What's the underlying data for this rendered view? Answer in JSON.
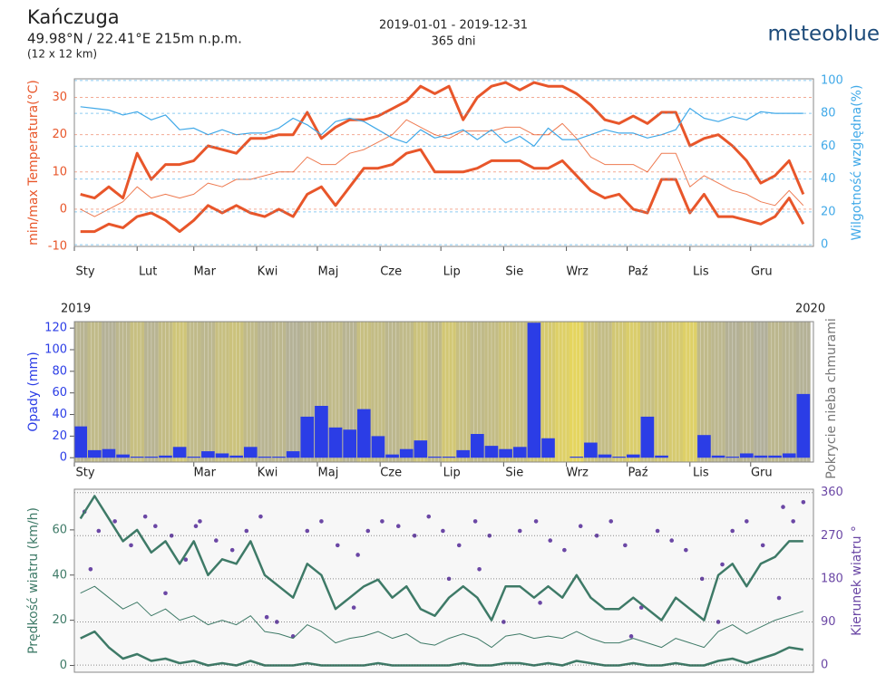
{
  "header": {
    "place": "Kańczuga",
    "coords": "49.98°N / 22.41°E   215m n.p.m.",
    "area": "(12 x 12 km)",
    "period": "2019-01-01 - 2019-12-31",
    "days": "365 dni",
    "brand": "meteoblue"
  },
  "chart_data": [
    {
      "type": "line",
      "ylabel": "min/max Temperatura(°C)",
      "y2label": "Wilgotność względna(%)",
      "x": [
        3,
        10,
        17,
        24,
        31,
        38,
        45,
        52,
        59,
        66,
        73,
        80,
        87,
        94,
        101,
        108,
        115,
        122,
        129,
        136,
        143,
        150,
        157,
        164,
        171,
        178,
        185,
        192,
        199,
        206,
        213,
        220,
        227,
        234,
        241,
        248,
        255,
        262,
        269,
        276,
        283,
        290,
        297,
        304,
        311,
        318,
        325,
        332,
        339,
        346,
        353,
        360
      ],
      "xlim": [
        0,
        365
      ],
      "xticks": [
        {
          "value": 0,
          "label": "Sty"
        },
        {
          "value": 31,
          "label": "Lut"
        },
        {
          "value": 59,
          "label": "Mar"
        },
        {
          "value": 90,
          "label": "Kwi"
        },
        {
          "value": 120,
          "label": "Maj"
        },
        {
          "value": 151,
          "label": "Cze"
        },
        {
          "value": 181,
          "label": "Lip"
        },
        {
          "value": 212,
          "label": "Sie"
        },
        {
          "value": 243,
          "label": "Wrz"
        },
        {
          "value": 273,
          "label": "Paź"
        },
        {
          "value": 304,
          "label": "Lis"
        },
        {
          "value": 334,
          "label": "Gru"
        }
      ],
      "ylim": [
        -10,
        35
      ],
      "yticks": [
        -10,
        0,
        10,
        20,
        30
      ],
      "y2lim": [
        -1,
        101
      ],
      "y2ticks": [
        0,
        20,
        40,
        60,
        80,
        100
      ],
      "series": [
        {
          "name": "max",
          "color": "#e8562a",
          "values": [
            4,
            3,
            6,
            3,
            15,
            8,
            12,
            12,
            13,
            17,
            16,
            15,
            19,
            19,
            20,
            20,
            26,
            19,
            22,
            24,
            24,
            25,
            27,
            29,
            33,
            31,
            33,
            24,
            30,
            33,
            34,
            32,
            34,
            33,
            33,
            31,
            28,
            24,
            23,
            25,
            23,
            26,
            26,
            17,
            19,
            20,
            17,
            13,
            7,
            9,
            13,
            4
          ]
        },
        {
          "name": "mean",
          "color": "#ee7a50",
          "values": [
            0,
            -2,
            0,
            2,
            6,
            3,
            4,
            3,
            4,
            7,
            6,
            8,
            8,
            9,
            10,
            10,
            14,
            12,
            12,
            15,
            16,
            18,
            20,
            24,
            22,
            20,
            19,
            21,
            21,
            21,
            22,
            22,
            20,
            20,
            23,
            19,
            14,
            12,
            12,
            12,
            10,
            15,
            15,
            6,
            9,
            7,
            5,
            4,
            2,
            1,
            5,
            1
          ]
        },
        {
          "name": "min",
          "color": "#e8562a",
          "values": [
            -6,
            -6,
            -4,
            -5,
            -2,
            -1,
            -3,
            -6,
            -3,
            1,
            -1,
            1,
            -1,
            -2,
            0,
            -2,
            4,
            6,
            1,
            6,
            11,
            11,
            12,
            15,
            16,
            10,
            10,
            10,
            11,
            13,
            13,
            13,
            11,
            11,
            13,
            9,
            5,
            3,
            4,
            0,
            -1,
            8,
            8,
            -1,
            4,
            -2,
            -2,
            -3,
            -4,
            -2,
            3,
            -4
          ]
        },
        {
          "name": "humidity",
          "color": "#41a9e8",
          "axis": "y2",
          "values": [
            84,
            83,
            82,
            79,
            81,
            76,
            79,
            70,
            71,
            67,
            70,
            67,
            68,
            68,
            71,
            77,
            73,
            67,
            75,
            77,
            75,
            70,
            65,
            62,
            70,
            65,
            67,
            70,
            64,
            70,
            62,
            66,
            60,
            71,
            64,
            64,
            67,
            70,
            68,
            68,
            65,
            67,
            70,
            83,
            77,
            75,
            78,
            76,
            81,
            80,
            80,
            80
          ]
        }
      ]
    },
    {
      "type": "bar",
      "ylabel": "Opady (mm)",
      "y2label": "Pokrycie nieba chmurami",
      "year_labels": [
        "2019",
        "2020"
      ],
      "x": [
        3,
        10,
        17,
        24,
        31,
        38,
        45,
        52,
        59,
        66,
        73,
        80,
        87,
        94,
        101,
        108,
        115,
        122,
        129,
        136,
        143,
        150,
        157,
        164,
        171,
        178,
        185,
        192,
        199,
        206,
        213,
        220,
        227,
        234,
        241,
        248,
        255,
        262,
        269,
        276,
        283,
        290,
        297,
        304,
        311,
        318,
        325,
        332,
        339,
        346,
        353,
        360
      ],
      "xlim": [
        0,
        365
      ],
      "xticks": [
        {
          "value": 0,
          "label": "Sty"
        },
        {
          "value": 59,
          "label": "Mar"
        },
        {
          "value": 90,
          "label": "Kwi"
        },
        {
          "value": 120,
          "label": "Maj"
        },
        {
          "value": 151,
          "label": "Cze"
        },
        {
          "value": 181,
          "label": "Lip"
        },
        {
          "value": 212,
          "label": "Sie"
        },
        {
          "value": 243,
          "label": "Wrz"
        },
        {
          "value": 273,
          "label": "Paź"
        },
        {
          "value": 304,
          "label": "Lis"
        },
        {
          "value": 334,
          "label": "Gru"
        }
      ],
      "ylim": [
        -4,
        126
      ],
      "yticks": [
        0,
        20,
        40,
        60,
        80,
        100,
        120
      ],
      "color": "#2b3de6",
      "cloud_colors": [
        "#f4e04d",
        "#a9a9a3"
      ],
      "values": [
        29,
        7,
        8,
        3,
        1,
        1,
        2,
        10,
        1,
        6,
        4,
        2,
        10,
        1,
        1,
        6,
        38,
        48,
        28,
        26,
        45,
        20,
        3,
        8,
        16,
        1,
        1,
        7,
        22,
        11,
        8,
        10,
        125,
        18,
        0,
        1,
        14,
        3,
        1,
        3,
        38,
        2,
        0,
        0,
        21,
        2,
        1,
        4,
        2,
        2,
        4,
        59
      ],
      "cloud_cover": [
        80,
        70,
        85,
        75,
        60,
        80,
        65,
        50,
        70,
        75,
        60,
        55,
        70,
        80,
        75,
        85,
        80,
        75,
        70,
        80,
        60,
        65,
        75,
        70,
        55,
        70,
        45,
        60,
        70,
        65,
        55,
        60,
        50,
        40,
        30,
        20,
        55,
        65,
        45,
        35,
        60,
        50,
        40,
        30,
        70,
        75,
        85,
        80,
        90,
        75,
        80,
        85
      ]
    },
    {
      "type": "line",
      "ylabel": "Prędkość wiatru (km/h)",
      "y2label": "Kierunek wiatru °",
      "x": [
        3,
        10,
        17,
        24,
        31,
        38,
        45,
        52,
        59,
        66,
        73,
        80,
        87,
        94,
        101,
        108,
        115,
        122,
        129,
        136,
        143,
        150,
        157,
        164,
        171,
        178,
        185,
        192,
        199,
        206,
        213,
        220,
        227,
        234,
        241,
        248,
        255,
        262,
        269,
        276,
        283,
        290,
        297,
        304,
        311,
        318,
        325,
        332,
        339,
        346,
        353,
        360
      ],
      "xlim": [
        0,
        365
      ],
      "ylim": [
        -3,
        78
      ],
      "yticks": [
        0,
        20,
        40,
        60
      ],
      "y2lim": [
        -15,
        367
      ],
      "y2ticks": [
        0,
        90,
        180,
        270,
        360
      ],
      "series": [
        {
          "name": "max",
          "color": "#3e7a67",
          "values": [
            65,
            75,
            65,
            55,
            60,
            50,
            55,
            45,
            55,
            40,
            47,
            45,
            55,
            40,
            35,
            30,
            45,
            40,
            25,
            30,
            35,
            38,
            30,
            35,
            25,
            22,
            30,
            35,
            30,
            20,
            35,
            35,
            30,
            35,
            30,
            40,
            30,
            25,
            25,
            30,
            25,
            20,
            30,
            25,
            20,
            40,
            45,
            35,
            45,
            48,
            55,
            55
          ]
        },
        {
          "name": "mean",
          "color": "#3e7a67",
          "values": [
            32,
            35,
            30,
            25,
            28,
            22,
            25,
            20,
            22,
            18,
            20,
            18,
            22,
            15,
            14,
            12,
            18,
            15,
            10,
            12,
            13,
            15,
            12,
            14,
            10,
            9,
            12,
            14,
            12,
            8,
            13,
            14,
            12,
            13,
            12,
            15,
            12,
            10,
            10,
            12,
            10,
            8,
            12,
            10,
            8,
            15,
            18,
            14,
            17,
            20,
            22,
            24
          ]
        },
        {
          "name": "min",
          "color": "#3e7a67",
          "values": [
            12,
            15,
            8,
            3,
            5,
            2,
            3,
            1,
            2,
            0,
            1,
            0,
            2,
            0,
            0,
            0,
            1,
            0,
            0,
            0,
            0,
            1,
            0,
            0,
            0,
            0,
            0,
            1,
            0,
            0,
            1,
            1,
            0,
            1,
            0,
            2,
            1,
            0,
            0,
            1,
            0,
            0,
            1,
            0,
            0,
            2,
            3,
            1,
            3,
            5,
            8,
            7
          ]
        }
      ],
      "scatter": {
        "color": "#6b47a5",
        "axis": "y2",
        "x": [
          5,
          12,
          20,
          28,
          35,
          40,
          48,
          55,
          62,
          70,
          78,
          85,
          92,
          100,
          108,
          115,
          122,
          130,
          138,
          145,
          152,
          160,
          168,
          175,
          182,
          190,
          198,
          205,
          212,
          220,
          228,
          235,
          242,
          250,
          258,
          265,
          272,
          280,
          288,
          295,
          302,
          310,
          318,
          325,
          332,
          340,
          348,
          355,
          360,
          8,
          45,
          95,
          140,
          185,
          230,
          275,
          320,
          350,
          60,
          200
        ],
        "y": [
          320,
          280,
          300,
          250,
          310,
          290,
          270,
          220,
          300,
          260,
          240,
          280,
          310,
          90,
          60,
          280,
          300,
          250,
          120,
          280,
          300,
          290,
          270,
          310,
          280,
          250,
          300,
          270,
          90,
          280,
          300,
          260,
          240,
          290,
          270,
          300,
          250,
          120,
          280,
          260,
          240,
          180,
          90,
          280,
          300,
          250,
          140,
          300,
          340,
          200,
          150,
          100,
          230,
          180,
          130,
          60,
          210,
          330,
          290,
          200
        ]
      }
    }
  ]
}
